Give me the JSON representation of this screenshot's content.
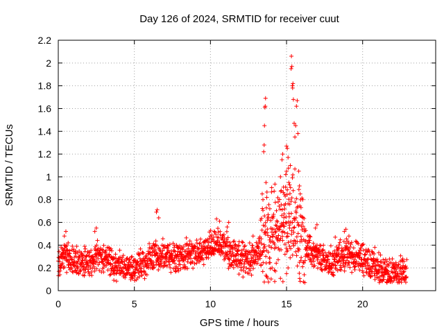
{
  "chart_data": {
    "type": "scatter",
    "title": "Day 126 of 2024, SRMTID for receiver cuut",
    "xlabel": "GPS time / hours",
    "ylabel": "SRMTID / TECUs",
    "xlim": [
      0,
      24.8
    ],
    "ylim": [
      0,
      2.2
    ],
    "xticks": [
      0,
      5,
      10,
      15,
      20
    ],
    "xtick_labels": [
      "0",
      "5",
      "10",
      "15",
      "20"
    ],
    "yticks": [
      0,
      0.2,
      0.4,
      0.6,
      0.8,
      1,
      1.2,
      1.4,
      1.6,
      1.8,
      2,
      2.2
    ],
    "ytick_labels": [
      "0",
      "0.2",
      "0.4",
      "0.6",
      "0.8",
      "1",
      "1.2",
      "1.4",
      "1.6",
      "1.8",
      "2",
      "2.2"
    ],
    "grid": true,
    "marker": "+",
    "color": "#ff0000",
    "series": [
      {
        "name": "cuut",
        "baseline_profile": [
          [
            0.0,
            0.22
          ],
          [
            0.5,
            0.32
          ],
          [
            1.0,
            0.25
          ],
          [
            2.0,
            0.25
          ],
          [
            2.5,
            0.3
          ],
          [
            3.0,
            0.27
          ],
          [
            4.0,
            0.22
          ],
          [
            5.0,
            0.19
          ],
          [
            5.5,
            0.25
          ],
          [
            6.0,
            0.27
          ],
          [
            6.5,
            0.32
          ],
          [
            7.0,
            0.3
          ],
          [
            8.0,
            0.3
          ],
          [
            9.0,
            0.32
          ],
          [
            9.5,
            0.33
          ],
          [
            10.0,
            0.4
          ],
          [
            10.5,
            0.42
          ],
          [
            11.0,
            0.37
          ],
          [
            11.5,
            0.33
          ],
          [
            12.0,
            0.28
          ],
          [
            12.5,
            0.27
          ],
          [
            13.0,
            0.32
          ],
          [
            13.5,
            0.45
          ],
          [
            14.0,
            0.42
          ],
          [
            14.5,
            0.5
          ],
          [
            15.0,
            0.65
          ],
          [
            15.5,
            0.62
          ],
          [
            16.0,
            0.45
          ],
          [
            16.5,
            0.35
          ],
          [
            17.0,
            0.3
          ],
          [
            17.5,
            0.25
          ],
          [
            18.0,
            0.25
          ],
          [
            18.5,
            0.3
          ],
          [
            19.0,
            0.32
          ],
          [
            19.5,
            0.3
          ],
          [
            20.0,
            0.28
          ],
          [
            20.5,
            0.25
          ],
          [
            21.0,
            0.2
          ],
          [
            21.5,
            0.14
          ],
          [
            22.0,
            0.14
          ],
          [
            22.5,
            0.16
          ],
          [
            22.9,
            0.15
          ]
        ],
        "sample_spacing_hours": 0.0125,
        "highlights": [
          [
            0.1,
            0.14
          ],
          [
            0.4,
            0.48
          ],
          [
            0.5,
            0.52
          ],
          [
            2.4,
            0.52
          ],
          [
            2.5,
            0.55
          ],
          [
            6.5,
            0.71
          ],
          [
            6.45,
            0.69
          ],
          [
            6.6,
            0.64
          ],
          [
            10.4,
            0.63
          ],
          [
            10.6,
            0.61
          ],
          [
            11.1,
            0.56
          ],
          [
            11.2,
            0.6
          ],
          [
            12.8,
            0.48
          ],
          [
            13.3,
            0.62
          ],
          [
            13.4,
            0.85
          ],
          [
            13.45,
            0.8
          ],
          [
            13.55,
            1.45
          ],
          [
            13.6,
            1.62
          ],
          [
            13.62,
            1.69
          ],
          [
            13.58,
            1.61
          ],
          [
            13.5,
            1.22
          ],
          [
            13.53,
            1.28
          ],
          [
            13.65,
            0.95
          ],
          [
            13.7,
            0.82
          ],
          [
            13.75,
            0.62
          ],
          [
            13.9,
            0.72
          ],
          [
            14.0,
            0.38
          ],
          [
            14.05,
            0.2
          ],
          [
            14.2,
            0.18
          ],
          [
            14.3,
            0.52
          ],
          [
            14.45,
            0.78
          ],
          [
            14.6,
            1.0
          ],
          [
            14.7,
            1.15
          ],
          [
            14.75,
            1.2
          ],
          [
            14.65,
            0.88
          ],
          [
            14.8,
            0.6
          ],
          [
            14.85,
            0.75
          ],
          [
            14.95,
            1.02
          ],
          [
            15.0,
            1.27
          ],
          [
            15.05,
            1.25
          ],
          [
            15.1,
            1.17
          ],
          [
            15.15,
            0.95
          ],
          [
            15.2,
            0.93
          ],
          [
            15.25,
            1.1
          ],
          [
            15.3,
            1.95
          ],
          [
            15.32,
            2.06
          ],
          [
            15.35,
            1.97
          ],
          [
            15.38,
            1.8
          ],
          [
            15.4,
            1.78
          ],
          [
            15.42,
            1.82
          ],
          [
            15.45,
            1.68
          ],
          [
            15.5,
            1.47
          ],
          [
            15.55,
            1.35
          ],
          [
            15.6,
            1.45
          ],
          [
            15.65,
            1.62
          ],
          [
            15.7,
            1.67
          ],
          [
            15.75,
            1.38
          ],
          [
            15.8,
            1.05
          ],
          [
            15.85,
            0.92
          ],
          [
            15.9,
            0.85
          ],
          [
            15.95,
            0.73
          ],
          [
            16.0,
            0.65
          ],
          [
            15.2,
            0.55
          ],
          [
            15.0,
            0.15
          ],
          [
            15.1,
            0.2
          ],
          [
            14.9,
            0.32
          ],
          [
            16.5,
            0.48
          ],
          [
            16.9,
            0.55
          ],
          [
            17.0,
            0.58
          ],
          [
            18.2,
            0.47
          ],
          [
            18.8,
            0.52
          ],
          [
            18.9,
            0.54
          ],
          [
            19.1,
            0.48
          ],
          [
            20.8,
            0.38
          ],
          [
            21.6,
            0.07
          ],
          [
            21.8,
            0.08
          ]
        ]
      }
    ]
  }
}
